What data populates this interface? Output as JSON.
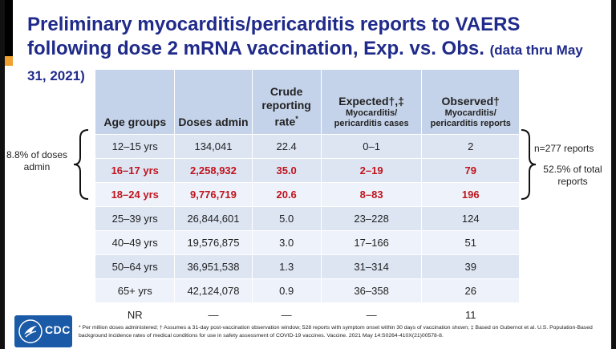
{
  "title": {
    "main": "Preliminary myocarditis/pericarditis reports to VAERS following dose 2 mRNA vaccination, Exp. vs. Obs.",
    "sub": "(data thru May 31, 2021)"
  },
  "table": {
    "headers": {
      "age": "Age groups",
      "doses": "Doses admin",
      "rate": "Crude reporting rate",
      "rate_mark": "*",
      "expected": "Expected†,‡",
      "expected_sub": "Myocarditis/ pericarditis cases",
      "observed": "Observed†",
      "observed_sub": "Myocarditis/ pericarditis reports"
    },
    "rows": [
      {
        "age": "12–15 yrs",
        "doses": "134,041",
        "rate": "22.4",
        "expected": "0–1",
        "observed": "2"
      },
      {
        "age": "16–17 yrs",
        "doses": "2,258,932",
        "rate": "35.0",
        "expected": "2–19",
        "observed": "79"
      },
      {
        "age": "18–24 yrs",
        "doses": "9,776,719",
        "rate": "20.6",
        "expected": "8–83",
        "observed": "196"
      },
      {
        "age": "25–39 yrs",
        "doses": "26,844,601",
        "rate": "5.0",
        "expected": "23–228",
        "observed": "124"
      },
      {
        "age": "40–49 yrs",
        "doses": "19,576,875",
        "rate": "3.0",
        "expected": "17–166",
        "observed": "51"
      },
      {
        "age": "50–64 yrs",
        "doses": "36,951,538",
        "rate": "1.3",
        "expected": "31–314",
        "observed": "39"
      },
      {
        "age": "65+ yrs",
        "doses": "42,124,078",
        "rate": "0.9",
        "expected": "36–358",
        "observed": "26"
      },
      {
        "age": "NR",
        "doses": "—",
        "rate": "—",
        "expected": "—",
        "observed": "11"
      }
    ]
  },
  "annotations": {
    "left": "8.8% of doses admin",
    "right_reports": "n=277 reports",
    "right_percent": "52.5% of total reports"
  },
  "footnote": "* Per million doses administered; † Assumes a 31-day post-vaccination observation window; 528 reports with symptom onset within 30 days of vaccination shown; ‡ Based on Gubernot et al. U.S. Population-Based background incidence rates of medical conditions for use in safety assessment of COVID-19 vaccines. Vaccine. 2021 May 14:S0264-410X(21)00578-8.",
  "logo": {
    "text": "CDC"
  },
  "colors": {
    "title": "#1f2a8a",
    "highlight": "#c0141c",
    "header_bg": "#c5d3ea"
  }
}
